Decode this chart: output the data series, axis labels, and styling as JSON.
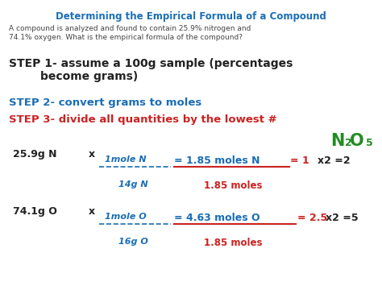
{
  "bg_color": "#ffffff",
  "title": "Determining the Empirical Formula of a Compound",
  "title_color": "#1a6eb5",
  "subtitle": "A compound is analyzed and found to contain 25.9% nitrogen and\n74.1% oxygen. What is the empirical formula of the compound?",
  "subtitle_color": "#444444",
  "step1_black": "STEP 1- assume a 100g sample (percentages\n        become grams)",
  "step2_blue": "STEP 2- convert grams to moles",
  "step3_red": "STEP 3- divide all quantities by the lowest #",
  "step1_color": "#222222",
  "step2_color": "#1a6eb5",
  "step3_color": "#cc2222",
  "formula_color": "#228b22",
  "calc1_prefix": "25.9g N",
  "calc1_num": "1mole N",
  "calc1_den": "14g N",
  "calc1_result": "= 1.85 moles N",
  "calc1_denom2": "1.85 moles",
  "calc1_ratio": "= 1",
  "calc1_x2": "x2 =2",
  "calc2_prefix": "74.1g O",
  "calc2_num": "1mole O",
  "calc2_den": "16g O",
  "calc2_result": "= 4.63 moles O",
  "calc2_denom2": "1.85 moles",
  "calc2_ratio": "= 2.5",
  "calc2_x2": "x2 =5",
  "black": "#222222",
  "blue": "#1a6eb5",
  "red": "#cc2222",
  "green": "#228b22"
}
